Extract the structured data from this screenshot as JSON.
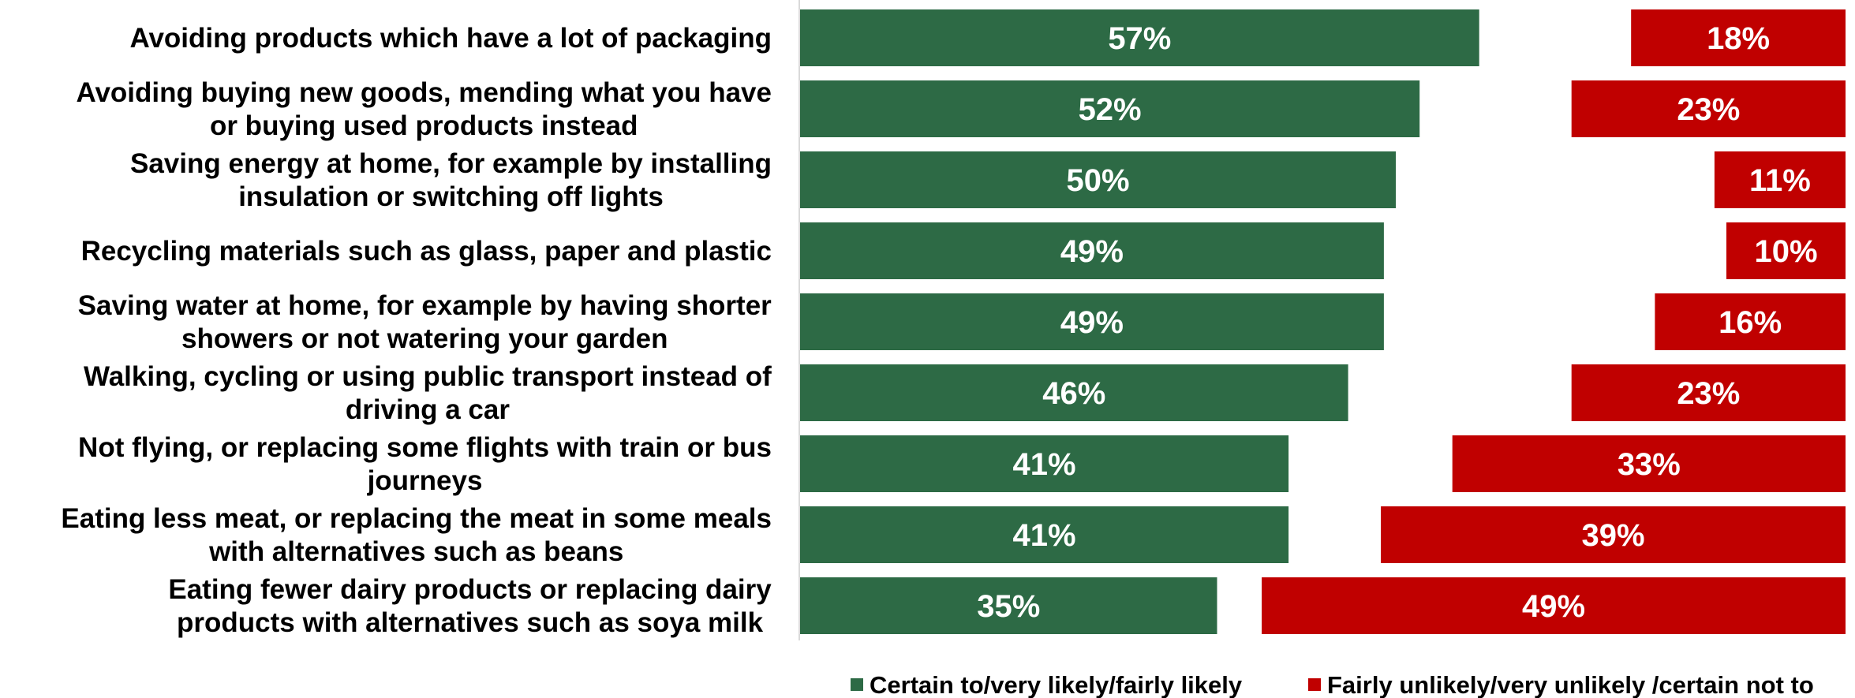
{
  "chart_data": {
    "type": "bar",
    "orientation": "horizontal",
    "categories": [
      [
        "Avoiding products which have a lot of packaging"
      ],
      [
        "Avoiding buying new goods, mending what you have",
        "or buying used products instead"
      ],
      [
        "Saving energy at home, for example by installing",
        "insulation or switching off lights"
      ],
      [
        "Recycling materials such as glass, paper and plastic"
      ],
      [
        "Saving water at home, for example by having shorter",
        "showers or not watering your garden"
      ],
      [
        "Walking, cycling or using public transport instead of",
        "driving a car"
      ],
      [
        "Not flying, or replacing some flights with train or bus",
        "journeys"
      ],
      [
        "Eating less meat, or replacing the meat in some meals",
        "with alternatives such as beans"
      ],
      [
        "Eating fewer dairy products or replacing dairy",
        "products with alternatives such as soya milk"
      ]
    ],
    "series": [
      {
        "name": "Certain to/very likely/fairly likely",
        "color": "#2d6a45",
        "values": [
          57,
          52,
          50,
          49,
          49,
          46,
          41,
          41,
          35
        ],
        "labels": [
          "57%",
          "52%",
          "50%",
          "49%",
          "49%",
          "46%",
          "41%",
          "41%",
          "35%"
        ],
        "align": "left"
      },
      {
        "name": "Fairly unlikely/very unlikely /certain not to",
        "color": "#c00000",
        "values": [
          18,
          23,
          11,
          10,
          16,
          23,
          33,
          39,
          49
        ],
        "labels": [
          "18%",
          "23%",
          "11%",
          "10%",
          "16%",
          "23%",
          "33%",
          "39%",
          "49%"
        ],
        "align": "right"
      }
    ],
    "xlim": [
      0,
      100
    ],
    "grid": false,
    "legend_position": "bottom"
  }
}
